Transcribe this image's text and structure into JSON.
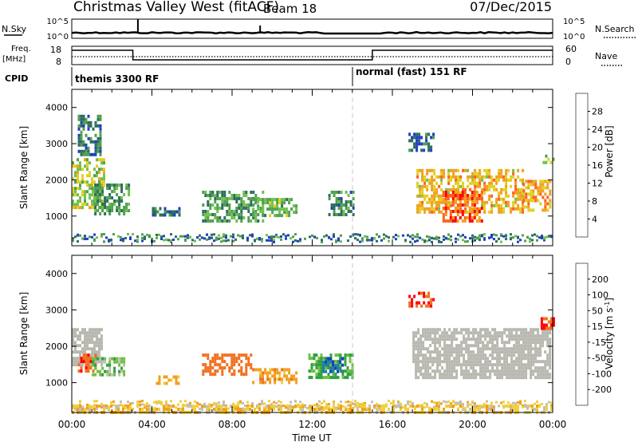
{
  "header": {
    "title": "Christmas Valley West (fitACF)",
    "beam": "Beam 18",
    "date": "07/Dec/2015"
  },
  "top_panels": {
    "nsky_label": "N.Sky",
    "nsky_ticks": [
      "10^5",
      "10^0"
    ],
    "nsearch_label": "N.Search",
    "nsearch_ticks": [
      "10^5",
      "10^0"
    ],
    "freq_label_line1": "Freq.",
    "freq_label_line2": "[MHz]",
    "freq_ticks": [
      "18",
      "8"
    ],
    "nave_label": "Nave",
    "nave_ticks": [
      "60",
      "0"
    ],
    "cpid_label": "CPID",
    "cpid_modes": [
      {
        "name": "themis 3300 RF",
        "start_hour": 0
      },
      {
        "name": "normal (fast) 151 RF",
        "start_hour": 14
      }
    ]
  },
  "colors": {
    "power_scale": [
      "#0000ff",
      "#2040c0",
      "#2e6e5e",
      "#50a050",
      "#70c050",
      "#e0d020",
      "#f0a020",
      "#ff6020",
      "#ff0000"
    ],
    "velocity_scale": [
      "#1040c0",
      "#2080a0",
      "#30a040",
      "#70c040",
      "#c0c0b8",
      "#f0d040",
      "#f0a020",
      "#f07020",
      "#ff0000"
    ],
    "ground_scatter": "#b8b8b0"
  },
  "chart_data": [
    {
      "type": "heatmap",
      "panel": "power",
      "ylabel": "Slant Range [km]",
      "yticks": [
        "4000",
        "3000",
        "2000",
        "1000"
      ],
      "ylim": [
        180,
        4500
      ],
      "xlim": [
        0,
        24
      ],
      "colorbar_label": "Power [dB]",
      "colorbar_ticks": [
        "28",
        "24",
        "20",
        "16",
        "12",
        "8",
        "4"
      ],
      "colorbar_range": [
        0,
        32
      ],
      "regions": [
        {
          "t0": 0.0,
          "t1": 1.6,
          "r0": 1200,
          "r1": 2600,
          "level": 20
        },
        {
          "t0": 0.3,
          "t1": 1.4,
          "r0": 2700,
          "r1": 3800,
          "level": 10
        },
        {
          "t0": 1.0,
          "t1": 2.8,
          "r0": 1100,
          "r1": 1900,
          "level": 14
        },
        {
          "t0": 4.0,
          "t1": 5.4,
          "r0": 1000,
          "r1": 1250,
          "level": 10
        },
        {
          "t0": 6.5,
          "t1": 9.5,
          "r0": 900,
          "r1": 1700,
          "level": 14
        },
        {
          "t0": 9.0,
          "t1": 11.2,
          "r0": 1000,
          "r1": 1500,
          "level": 16
        },
        {
          "t0": 12.8,
          "t1": 14.0,
          "r0": 1000,
          "r1": 1700,
          "level": 12
        },
        {
          "t0": 16.8,
          "t1": 18.0,
          "r0": 2800,
          "r1": 3300,
          "level": 9
        },
        {
          "t0": 17.2,
          "t1": 22.5,
          "r0": 1100,
          "r1": 2300,
          "level": 24
        },
        {
          "t0": 18.5,
          "t1": 20.5,
          "r0": 900,
          "r1": 1700,
          "level": 30
        },
        {
          "t0": 22.5,
          "t1": 23.9,
          "r0": 1200,
          "r1": 2000,
          "level": 26
        },
        {
          "t0": 23.5,
          "t1": 24.0,
          "r0": 2500,
          "r1": 2700,
          "level": 18
        }
      ]
    },
    {
      "type": "heatmap",
      "panel": "velocity",
      "ylabel": "Slant Range [km]",
      "yticks": [
        "4000",
        "3000",
        "2000",
        "1000"
      ],
      "ylim": [
        180,
        4500
      ],
      "xlim": [
        0,
        24
      ],
      "colorbar_label": "Velocity [m s^-1]",
      "colorbar_ticks": [
        "200",
        "100",
        "50",
        "15",
        "-15",
        "-50",
        "-100",
        "-200"
      ],
      "colorbar_range": [
        -250,
        250
      ],
      "regions": [
        {
          "t0": 0.0,
          "t1": 1.5,
          "r0": 1500,
          "r1": 2500,
          "velocity": 0,
          "ground_scatter": true
        },
        {
          "t0": 0.3,
          "t1": 1.2,
          "r0": 1300,
          "r1": 1800,
          "velocity": -180
        },
        {
          "t0": 1.0,
          "t1": 2.6,
          "r0": 1200,
          "r1": 1700,
          "velocity": 30
        },
        {
          "t0": 4.2,
          "t1": 5.3,
          "r0": 950,
          "r1": 1200,
          "velocity": -60
        },
        {
          "t0": 6.5,
          "t1": 9.0,
          "r0": 1200,
          "r1": 1800,
          "velocity": -150
        },
        {
          "t0": 9.0,
          "t1": 11.2,
          "r0": 1000,
          "r1": 1400,
          "velocity": -80
        },
        {
          "t0": 11.8,
          "t1": 14.0,
          "r0": 1100,
          "r1": 1800,
          "velocity": 60
        },
        {
          "t0": 12.5,
          "t1": 13.5,
          "r0": 1300,
          "r1": 1700,
          "velocity": 180
        },
        {
          "t0": 16.8,
          "t1": 18.0,
          "r0": 3100,
          "r1": 3500,
          "velocity": -200
        },
        {
          "t0": 17.0,
          "t1": 23.9,
          "r0": 1100,
          "r1": 2500,
          "velocity": 0,
          "ground_scatter": true
        },
        {
          "t0": 23.4,
          "t1": 24.0,
          "r0": 2500,
          "r1": 2800,
          "velocity": -200
        },
        {
          "t0": 0.0,
          "t1": 24.0,
          "r0": 180,
          "r1": 400,
          "velocity": -40
        }
      ]
    }
  ],
  "x_axis": {
    "ticks": [
      "00:00",
      "04:00",
      "08:00",
      "12:00",
      "16:00",
      "20:00",
      "00:00"
    ],
    "label": "Time UT"
  }
}
